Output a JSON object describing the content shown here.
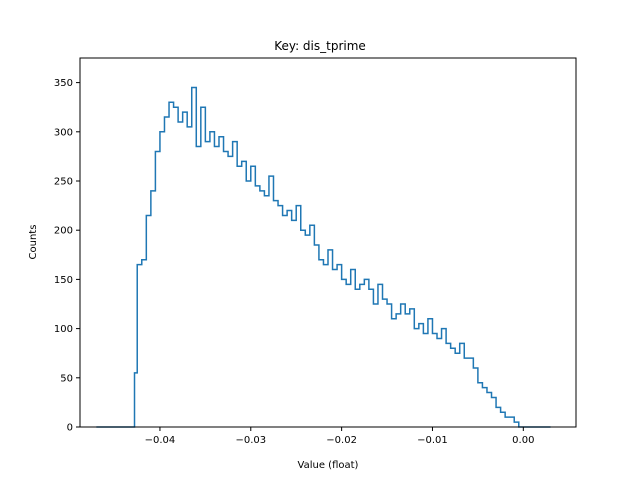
{
  "chart_data": {
    "type": "histogram-step",
    "title": "Key: dis_tprime",
    "xlabel": "Value (float)",
    "ylabel": "Counts",
    "xlim": [
      -0.0488,
      0.0058
    ],
    "ylim": [
      0,
      375
    ],
    "xticks": [
      -0.04,
      -0.03,
      -0.02,
      -0.01,
      0.0
    ],
    "xtick_labels": [
      "−0.04",
      "−0.03",
      "−0.02",
      "−0.01",
      "0.00"
    ],
    "yticks": [
      0,
      50,
      100,
      150,
      200,
      250,
      300,
      350
    ],
    "ytick_labels": [
      "0",
      "50",
      "100",
      "150",
      "200",
      "250",
      "300",
      "350"
    ],
    "grid": false,
    "line_color": "#1f77b4",
    "series": [
      {
        "x": [
          -0.047,
          -0.046,
          -0.045,
          -0.044,
          -0.0432,
          -0.0428,
          -0.0425,
          -0.042,
          -0.0415,
          -0.041,
          -0.0405,
          -0.04,
          -0.0395,
          -0.039,
          -0.0385,
          -0.038,
          -0.0375,
          -0.037,
          -0.0365,
          -0.036,
          -0.0355,
          -0.035,
          -0.0345,
          -0.034,
          -0.0335,
          -0.033,
          -0.0325,
          -0.032,
          -0.0315,
          -0.031,
          -0.0305,
          -0.03,
          -0.0295,
          -0.029,
          -0.0285,
          -0.028,
          -0.0275,
          -0.027,
          -0.0265,
          -0.026,
          -0.0255,
          -0.025,
          -0.0245,
          -0.024,
          -0.0235,
          -0.023,
          -0.0225,
          -0.022,
          -0.0215,
          -0.021,
          -0.0205,
          -0.02,
          -0.0195,
          -0.019,
          -0.0185,
          -0.018,
          -0.0175,
          -0.017,
          -0.0165,
          -0.016,
          -0.0155,
          -0.015,
          -0.0145,
          -0.014,
          -0.0135,
          -0.013,
          -0.0125,
          -0.012,
          -0.0115,
          -0.011,
          -0.0105,
          -0.01,
          -0.0095,
          -0.009,
          -0.0085,
          -0.008,
          -0.0075,
          -0.007,
          -0.0065,
          -0.006,
          -0.0055,
          -0.005,
          -0.0045,
          -0.004,
          -0.0035,
          -0.003,
          -0.0025,
          -0.002,
          -0.0015,
          -0.001,
          -0.0005,
          0.0,
          0.001,
          0.002,
          0.003
        ],
        "y": [
          0,
          0,
          0,
          0,
          0,
          55,
          165,
          170,
          215,
          240,
          280,
          300,
          315,
          330,
          325,
          310,
          320,
          305,
          345,
          285,
          325,
          290,
          300,
          285,
          295,
          280,
          275,
          290,
          265,
          270,
          250,
          265,
          245,
          240,
          235,
          255,
          230,
          225,
          215,
          220,
          210,
          225,
          200,
          195,
          205,
          185,
          170,
          165,
          180,
          160,
          165,
          150,
          145,
          160,
          140,
          145,
          150,
          140,
          125,
          145,
          130,
          125,
          110,
          115,
          125,
          115,
          120,
          100,
          105,
          95,
          110,
          95,
          90,
          100,
          85,
          80,
          75,
          85,
          70,
          70,
          60,
          45,
          40,
          35,
          30,
          20,
          15,
          10,
          10,
          5,
          0,
          0,
          0,
          0,
          0
        ]
      }
    ]
  }
}
